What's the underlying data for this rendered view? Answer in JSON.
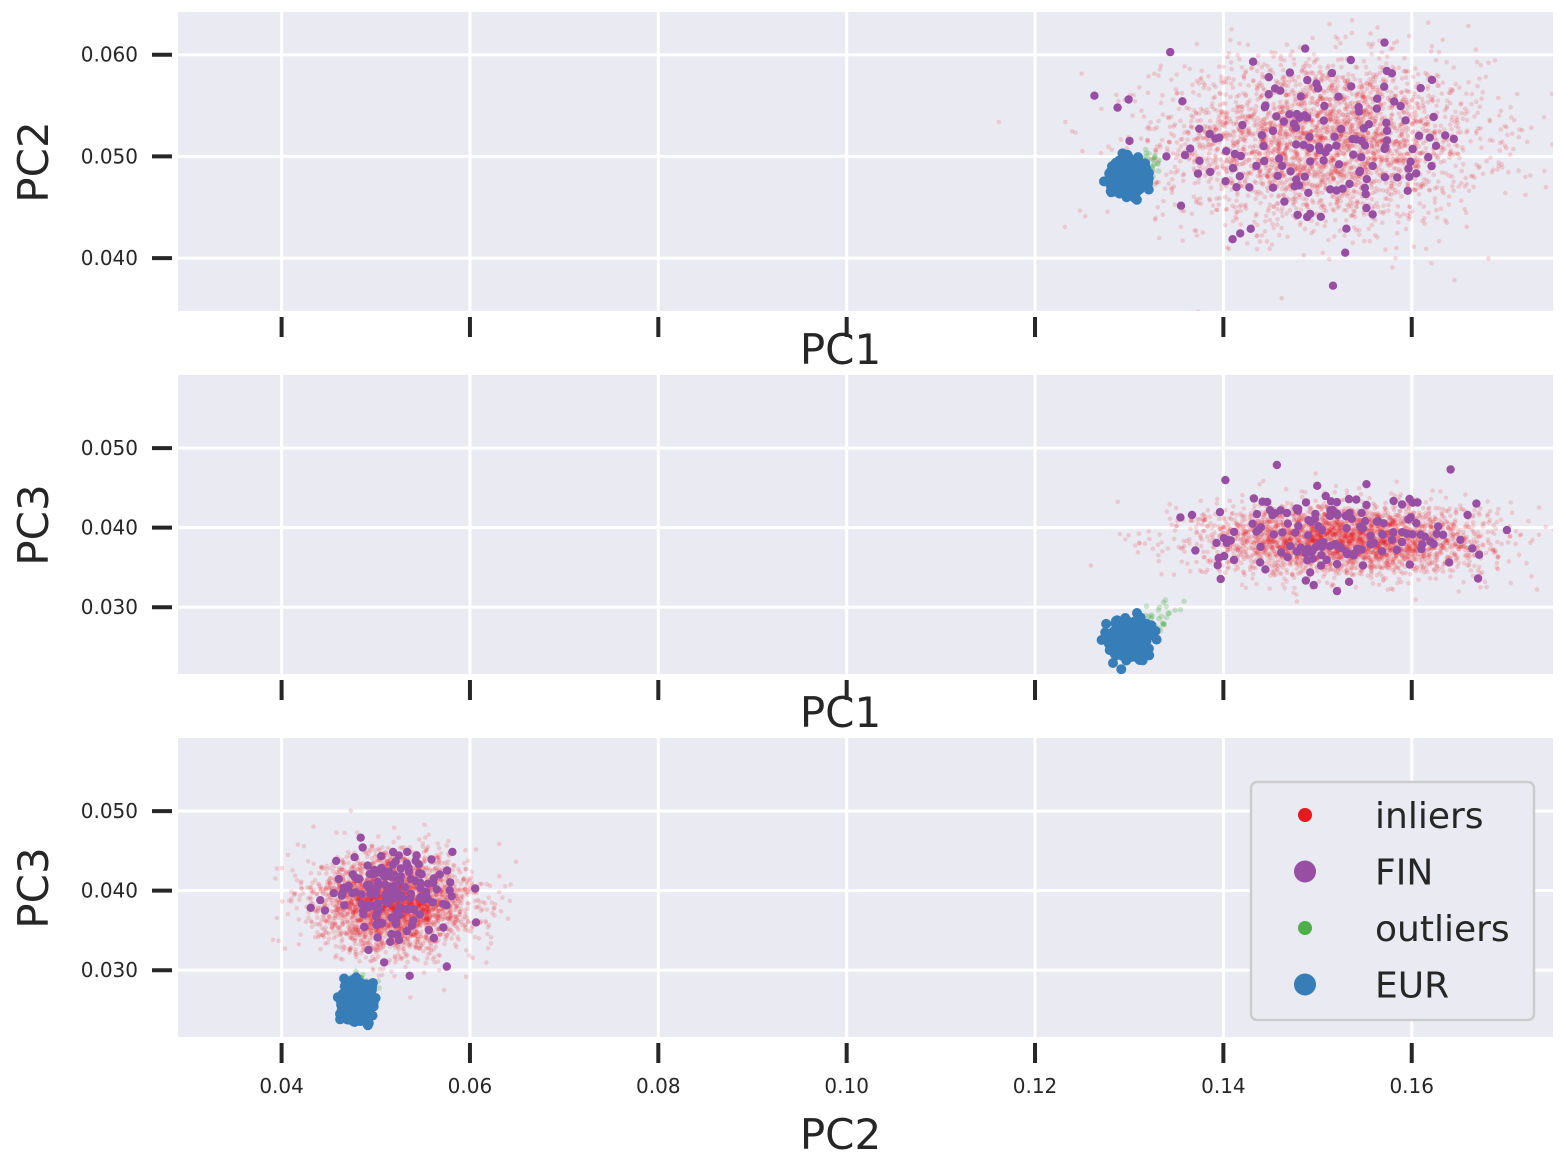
{
  "chart_data": [
    {
      "type": "scatter",
      "xlabel": "PC1",
      "ylabel": "PC2",
      "xlim": [
        0.029,
        0.175
      ],
      "ylim": [
        0.0348,
        0.0642
      ],
      "xticks": [
        0.04,
        0.06,
        0.08,
        0.1,
        0.12,
        0.14,
        0.16
      ],
      "xtick_labels_visible": false,
      "yticks": [
        0.04,
        0.05,
        0.06
      ],
      "ytick_labels": [
        "0.040",
        "0.050",
        "0.060"
      ],
      "grid": true,
      "series": [
        {
          "name": "inliers",
          "color": "#e41a1c",
          "center": [
            0.1505,
            0.0515
          ],
          "spread": [
            0.0085,
            0.004
          ],
          "approx_count": 3000
        },
        {
          "name": "FIN",
          "color": "#984ea3",
          "center": [
            0.15,
            0.051
          ],
          "spread": [
            0.008,
            0.004
          ],
          "approx_count": 150
        },
        {
          "name": "outliers",
          "color": "#4daf4a",
          "center": [
            0.132,
            0.0492
          ],
          "spread": [
            0.0008,
            0.0008
          ],
          "approx_count": 30
        },
        {
          "name": "EUR",
          "color": "#377eb8",
          "center": [
            0.13,
            0.0482
          ],
          "spread": [
            0.0008,
            0.0007
          ],
          "approx_count": 400
        }
      ]
    },
    {
      "type": "scatter",
      "xlabel": "PC1",
      "ylabel": "PC3",
      "xlim": [
        0.029,
        0.175
      ],
      "ylim": [
        0.0216,
        0.0592
      ],
      "xticks": [
        0.04,
        0.06,
        0.08,
        0.1,
        0.12,
        0.14,
        0.16
      ],
      "xtick_labels_visible": false,
      "yticks": [
        0.03,
        0.04,
        0.05
      ],
      "ytick_labels": [
        "0.030",
        "0.040",
        "0.050"
      ],
      "grid": true,
      "series": [
        {
          "name": "inliers",
          "color": "#e41a1c",
          "center": [
            0.153,
            0.0385
          ],
          "spread": [
            0.0075,
            0.0022
          ],
          "approx_count": 3000
        },
        {
          "name": "FIN",
          "color": "#984ea3",
          "center": [
            0.152,
            0.039
          ],
          "spread": [
            0.0075,
            0.003
          ],
          "approx_count": 150
        },
        {
          "name": "outliers",
          "color": "#4daf4a",
          "center": [
            0.133,
            0.0288
          ],
          "spread": [
            0.001,
            0.001
          ],
          "approx_count": 30
        },
        {
          "name": "EUR",
          "color": "#377eb8",
          "center": [
            0.13,
            0.0258
          ],
          "spread": [
            0.0009,
            0.0011
          ],
          "approx_count": 400
        }
      ]
    },
    {
      "type": "scatter",
      "xlabel": "PC2",
      "ylabel": "PC3",
      "xlim": [
        0.029,
        0.175
      ],
      "ylim": [
        0.0216,
        0.0592
      ],
      "xticks": [
        0.04,
        0.06,
        0.08,
        0.1,
        0.12,
        0.14,
        0.16
      ],
      "xtick_labels": [
        "0.04",
        "0.06",
        "0.08",
        "0.10",
        "0.12",
        "0.14",
        "0.16"
      ],
      "xtick_labels_visible": true,
      "yticks": [
        0.03,
        0.04,
        0.05
      ],
      "ytick_labels": [
        "0.030",
        "0.040",
        "0.050"
      ],
      "grid": true,
      "legend": {
        "placement": "lower-right",
        "entries": [
          {
            "label": "inliers",
            "color": "#e41a1c",
            "marker": "small"
          },
          {
            "label": "FIN",
            "color": "#984ea3",
            "marker": "large"
          },
          {
            "label": "outliers",
            "color": "#4daf4a",
            "marker": "small"
          },
          {
            "label": "EUR",
            "color": "#377eb8",
            "marker": "large"
          }
        ]
      },
      "series": [
        {
          "name": "inliers",
          "color": "#e41a1c",
          "center": [
            0.052,
            0.0385
          ],
          "spread": [
            0.004,
            0.003
          ],
          "approx_count": 3000
        },
        {
          "name": "FIN",
          "color": "#984ea3",
          "center": [
            0.052,
            0.0395
          ],
          "spread": [
            0.0035,
            0.003
          ],
          "approx_count": 150
        },
        {
          "name": "outliers",
          "color": "#4daf4a",
          "center": [
            0.0485,
            0.0285
          ],
          "spread": [
            0.0008,
            0.0008
          ],
          "approx_count": 30
        },
        {
          "name": "EUR",
          "color": "#377eb8",
          "center": [
            0.048,
            0.0258
          ],
          "spread": [
            0.0007,
            0.0011
          ],
          "approx_count": 400
        }
      ]
    }
  ]
}
